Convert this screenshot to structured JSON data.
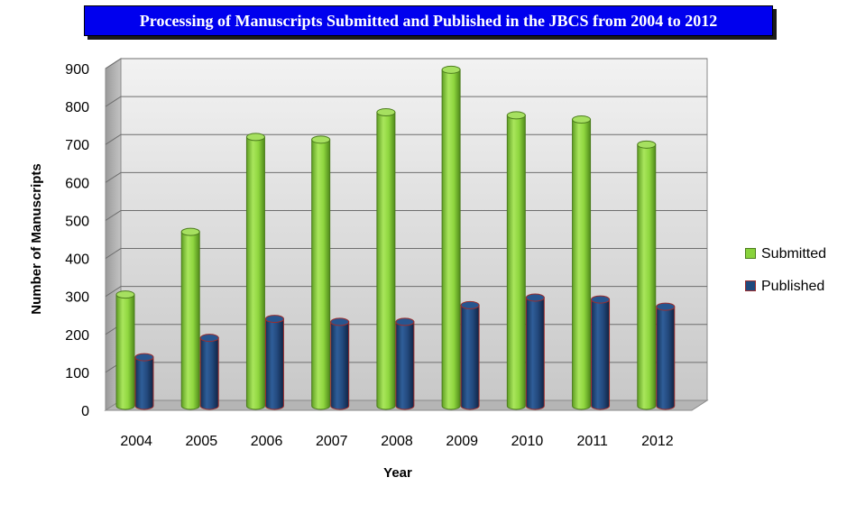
{
  "title": "Processing of Manuscripts Submitted and Published in the JBCS from 2004 to 2012",
  "chart_data": {
    "type": "bar",
    "title": "Processing of Manuscripts Submitted and Published in the JBCS from 2004 to 2012",
    "xlabel": "Year",
    "ylabel": "Number of Manuscripts",
    "categories": [
      "2004",
      "2005",
      "2006",
      "2007",
      "2008",
      "2009",
      "2010",
      "2011",
      "2012"
    ],
    "series": [
      {
        "name": "Submitted",
        "values": [
          300,
          465,
          715,
          708,
          780,
          892,
          772,
          761,
          695
        ],
        "color": "#88d23c"
      },
      {
        "name": "Published",
        "values": [
          147,
          198,
          248,
          240,
          240,
          284,
          304,
          299,
          280
        ],
        "color": "#1f497d"
      }
    ],
    "ylim": [
      0,
      900
    ],
    "yticks": [
      0,
      100,
      200,
      300,
      400,
      500,
      600,
      700,
      800,
      900
    ],
    "grid": true,
    "legend": "right",
    "style": "3d-cylinder"
  }
}
